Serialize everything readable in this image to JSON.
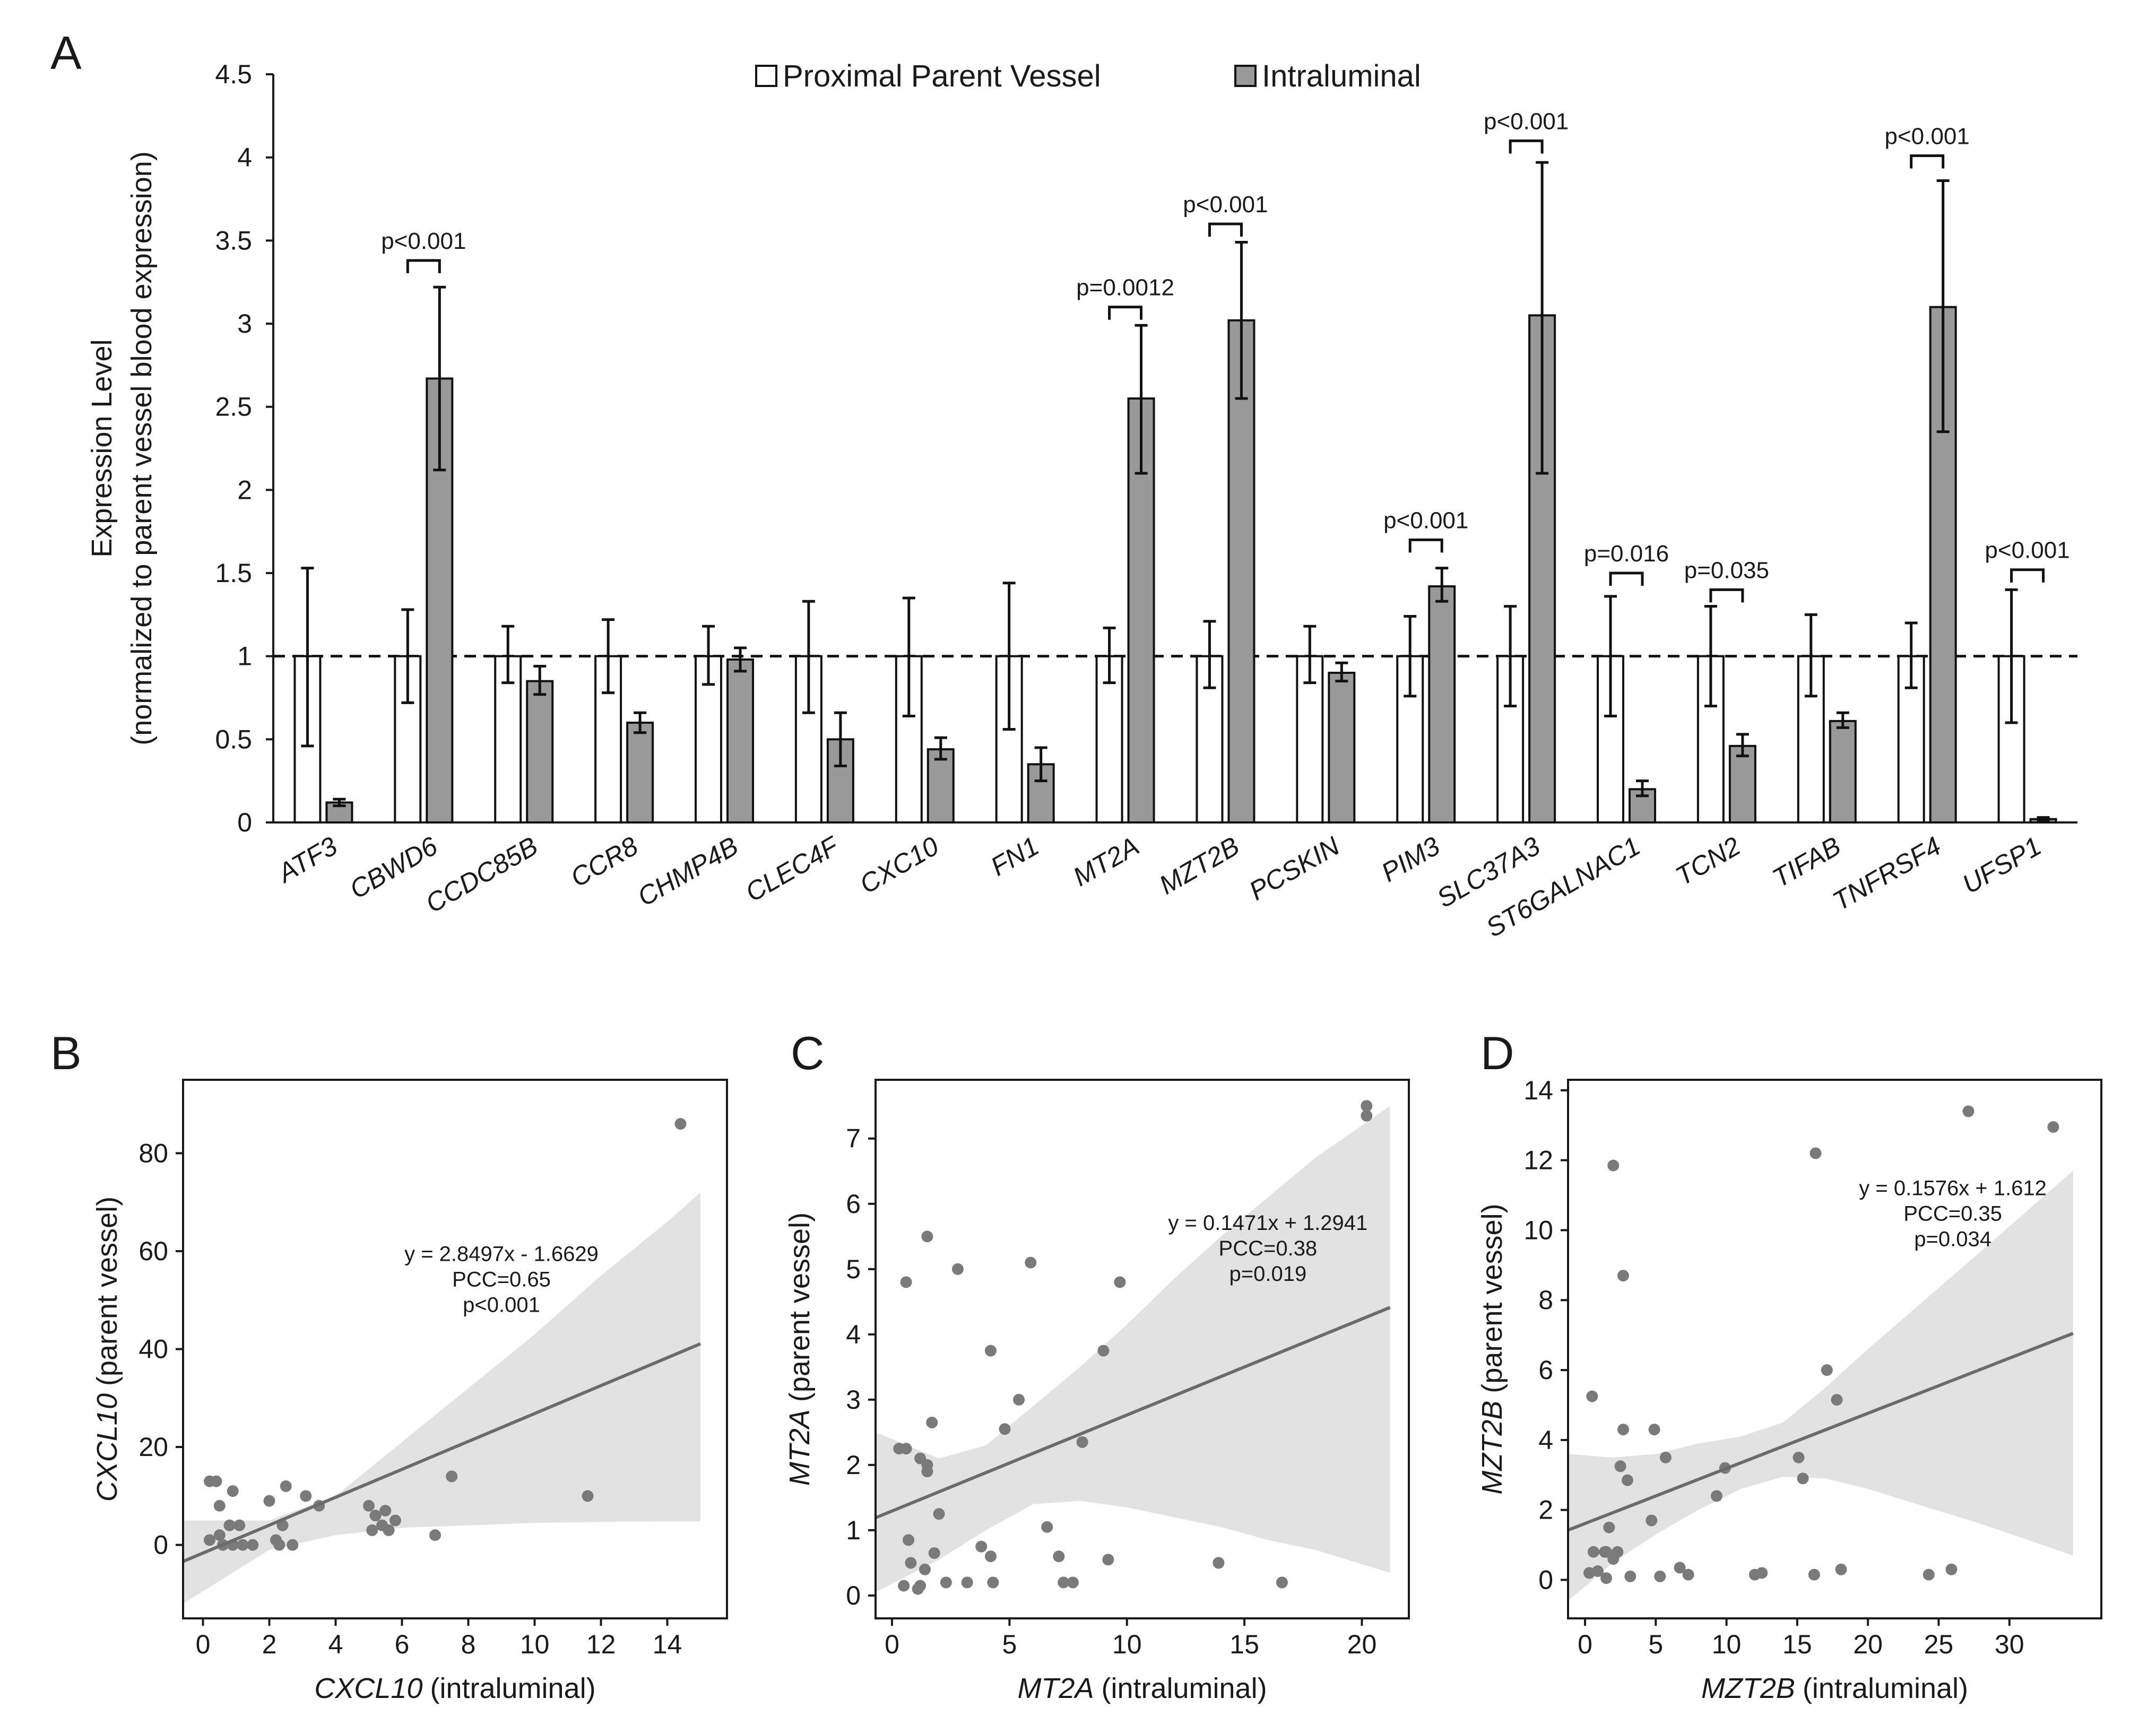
{
  "chart_data": [
    {
      "panel": "A",
      "type": "bar",
      "ylabel": "Expression Level",
      "ylabel2": "(normalized to parent vessel blood expression)",
      "ylim": [
        0,
        4.5
      ],
      "yticks": [
        "0",
        "0.5",
        "1",
        "1.5",
        "2",
        "2.5",
        "3",
        "3.5",
        "4",
        "4.5"
      ],
      "reference_line": 1,
      "legend": [
        "Proximal Parent Vessel",
        "Intraluminal"
      ],
      "colors": {
        "parent": "#ffffff",
        "intraluminal": "#999999",
        "edge": "#111111",
        "grid": "#cccccc"
      },
      "categories": [
        "ATF3",
        "CBWD6",
        "CCDC85B",
        "CCR8",
        "CHMP4B",
        "CLEC4F",
        "CXC10",
        "FN1",
        "MT2A",
        "MZT2B",
        "PCSKIN",
        "PIM3",
        "SLC37A3",
        "ST6GALNAC1",
        "TCN2",
        "TIFAB",
        "TNFRSF4",
        "UFSP1"
      ],
      "series": [
        {
          "name": "Proximal Parent Vessel",
          "values": [
            1,
            1,
            1,
            1,
            1,
            1,
            1,
            1,
            1,
            1,
            1,
            1,
            1,
            1,
            1,
            1,
            1,
            1
          ],
          "err_low": [
            0.46,
            0.72,
            0.84,
            0.78,
            0.83,
            0.66,
            0.64,
            0.56,
            0.84,
            0.81,
            0.84,
            0.76,
            0.7,
            0.64,
            0.7,
            0.76,
            0.81,
            0.6
          ],
          "err_high": [
            1.53,
            1.28,
            1.18,
            1.22,
            1.18,
            1.33,
            1.35,
            1.44,
            1.17,
            1.21,
            1.18,
            1.24,
            1.3,
            1.36,
            1.3,
            1.25,
            1.2,
            1.4
          ]
        },
        {
          "name": "Intraluminal",
          "values": [
            0.12,
            2.67,
            0.85,
            0.6,
            0.98,
            0.5,
            0.44,
            0.35,
            2.55,
            3.02,
            0.9,
            1.42,
            3.05,
            0.2,
            0.46,
            0.61,
            3.1,
            0.02
          ],
          "err_low": [
            0.1,
            2.12,
            0.77,
            0.54,
            0.91,
            0.34,
            0.38,
            0.25,
            2.1,
            2.55,
            0.85,
            1.33,
            2.1,
            0.16,
            0.4,
            0.57,
            2.35,
            0.01
          ],
          "err_high": [
            0.14,
            3.22,
            0.94,
            0.66,
            1.05,
            0.66,
            0.51,
            0.45,
            2.99,
            3.49,
            0.96,
            1.53,
            3.97,
            0.25,
            0.53,
            0.66,
            3.86,
            0.03
          ]
        }
      ],
      "annotations": [
        {
          "category": "CBWD6",
          "text": "p<0.001",
          "y": 3.38
        },
        {
          "category": "MT2A",
          "text": "p=0.0012",
          "y": 3.1
        },
        {
          "category": "MZT2B",
          "text": "p<0.001",
          "y": 3.6
        },
        {
          "category": "PIM3",
          "text": "p<0.001",
          "y": 1.7
        },
        {
          "category": "SLC37A3",
          "text": "p<0.001",
          "y": 4.1
        },
        {
          "category": "ST6GALNAC1",
          "text": "p=0.016",
          "y": 1.5
        },
        {
          "category": "TCN2",
          "text": "p=0.035",
          "y": 1.4
        },
        {
          "category": "TNFRSF4",
          "text": "p<0.001",
          "y": 4.01
        },
        {
          "category": "UFSP1",
          "text": "p<0.001",
          "y": 1.52
        }
      ]
    },
    {
      "panel": "B",
      "type": "scatter",
      "xlabel_gene": "CXCL10",
      "xlabel_rest": "(intraluminal)",
      "ylabel_gene": "CXCL10",
      "ylabel_rest": "(parent vessel)",
      "xlim": [
        -0.6,
        15.8
      ],
      "ylim": [
        -15,
        95
      ],
      "xticks": [
        0,
        2,
        4,
        6,
        8,
        10,
        12,
        14
      ],
      "yticks": [
        0,
        20,
        40,
        60,
        80
      ],
      "fit": {
        "slope": 2.8497,
        "intercept": -1.6629,
        "x_range": [
          -0.6,
          15
        ]
      },
      "band": {
        "x": [
          -0.6,
          2,
          4,
          6,
          8,
          10,
          12,
          14,
          15
        ],
        "lower": [
          -12,
          -1,
          2,
          3.5,
          4,
          4.5,
          4.7,
          4.8,
          4.8
        ],
        "upper": [
          5,
          5,
          10,
          21,
          32,
          43,
          55,
          66,
          72
        ]
      },
      "equation": "y = 2.8497x - 1.6629",
      "pcc": "PCC=0.65",
      "pvalue": "p<0.001",
      "points": [
        [
          0.2,
          13
        ],
        [
          0.4,
          13
        ],
        [
          0.9,
          11
        ],
        [
          0.5,
          8
        ],
        [
          0.8,
          4
        ],
        [
          1.1,
          4
        ],
        [
          0.2,
          1
        ],
        [
          0.5,
          2
        ],
        [
          0.6,
          0
        ],
        [
          0.9,
          0
        ],
        [
          1.2,
          0
        ],
        [
          1.5,
          0
        ],
        [
          2,
          9
        ],
        [
          2.2,
          1
        ],
        [
          2.3,
          0
        ],
        [
          2.4,
          4
        ],
        [
          2.5,
          12
        ],
        [
          2.7,
          0
        ],
        [
          3.1,
          10
        ],
        [
          3.5,
          8
        ],
        [
          5,
          8
        ],
        [
          5.1,
          3
        ],
        [
          5.2,
          6
        ],
        [
          5.4,
          4
        ],
        [
          5.5,
          7
        ],
        [
          5.8,
          5
        ],
        [
          5.6,
          3
        ],
        [
          7,
          2
        ],
        [
          7.5,
          14
        ],
        [
          11.6,
          10
        ],
        [
          14.4,
          86
        ]
      ]
    },
    {
      "panel": "C",
      "type": "scatter",
      "xlabel_gene": "MT2A",
      "xlabel_rest": "(intraluminal)",
      "ylabel_gene": "MT2A",
      "ylabel_rest": "(parent vessel)",
      "xlim": [
        -0.7,
        22
      ],
      "ylim": [
        -0.35,
        7.9
      ],
      "xticks": [
        0,
        5,
        10,
        15,
        20
      ],
      "yticks": [
        0,
        1,
        2,
        3,
        4,
        5,
        6,
        7
      ],
      "fit": {
        "slope": 0.1471,
        "intercept": 1.2941,
        "x_range": [
          -0.7,
          21.2
        ]
      },
      "band": {
        "x": [
          -0.7,
          2,
          4,
          6,
          8,
          10,
          12,
          14,
          16,
          18,
          21.2
        ],
        "lower": [
          0.05,
          0.55,
          1.0,
          1.4,
          1.45,
          1.35,
          1.2,
          1.05,
          0.85,
          0.7,
          0.35
        ],
        "upper": [
          2.5,
          2.1,
          2.3,
          2.9,
          3.5,
          4.15,
          4.85,
          5.5,
          6.1,
          6.7,
          7.5
        ]
      },
      "equation": "y = 0.1471x + 1.2941",
      "pcc": "PCC=0.38",
      "pvalue": "p=0.019",
      "points": [
        [
          0.3,
          2.25
        ],
        [
          0.6,
          2.25
        ],
        [
          0.6,
          4.8
        ],
        [
          0.5,
          0.15
        ],
        [
          0.7,
          0.85
        ],
        [
          0.8,
          0.5
        ],
        [
          1.1,
          0.1
        ],
        [
          1.2,
          0.15
        ],
        [
          1.2,
          2.1
        ],
        [
          1.4,
          0.4
        ],
        [
          1.5,
          1.9
        ],
        [
          1.5,
          2.0
        ],
        [
          1.5,
          5.5
        ],
        [
          1.7,
          2.65
        ],
        [
          1.8,
          0.65
        ],
        [
          2.0,
          1.25
        ],
        [
          2.3,
          0.2
        ],
        [
          2.8,
          5.0
        ],
        [
          3.2,
          0.2
        ],
        [
          3.8,
          0.75
        ],
        [
          4.2,
          3.75
        ],
        [
          4.3,
          0.2
        ],
        [
          4.2,
          0.6
        ],
        [
          4.8,
          2.55
        ],
        [
          5.4,
          3.0
        ],
        [
          5.9,
          5.1
        ],
        [
          6.6,
          1.05
        ],
        [
          7.1,
          0.6
        ],
        [
          7.3,
          0.2
        ],
        [
          7.7,
          0.2
        ],
        [
          8.1,
          2.35
        ],
        [
          9.0,
          3.75
        ],
        [
          9.2,
          0.55
        ],
        [
          9.7,
          4.8
        ],
        [
          13.9,
          0.5
        ],
        [
          16.6,
          0.2
        ],
        [
          20.2,
          7.35
        ],
        [
          20.2,
          7.5
        ]
      ]
    },
    {
      "panel": "D",
      "type": "scatter",
      "xlabel_gene": "MZT2B",
      "xlabel_rest": "(intraluminal)",
      "ylabel_gene": "MZT2B",
      "ylabel_rest": "(parent vessel)",
      "xlim": [
        -1.2,
        36.5
      ],
      "ylim": [
        -1.1,
        14.3
      ],
      "xticks": [
        0,
        5,
        10,
        15,
        20,
        25,
        30
      ],
      "yticks": [
        0,
        2,
        4,
        6,
        8,
        10,
        12,
        14
      ],
      "fit": {
        "slope": 0.1576,
        "intercept": 1.612,
        "x_range": [
          -1.2,
          34.5
        ]
      },
      "band": {
        "x": [
          -1.2,
          2,
          5,
          8,
          11,
          14,
          17,
          20,
          24,
          28,
          34.5
        ],
        "lower": [
          -0.6,
          0.5,
          1.3,
          2.0,
          2.6,
          2.95,
          2.9,
          2.6,
          2.1,
          1.6,
          0.7
        ],
        "upper": [
          3.6,
          3.5,
          3.6,
          3.9,
          4.1,
          4.5,
          5.5,
          6.6,
          8.0,
          9.4,
          11.7
        ]
      },
      "equation": "y = 0.1576x + 1.612",
      "pcc": "PCC=0.35",
      "pvalue": "p=0.034",
      "points": [
        [
          0.3,
          0.2
        ],
        [
          0.5,
          5.25
        ],
        [
          0.6,
          0.8
        ],
        [
          0.9,
          0.25
        ],
        [
          1.4,
          0.8
        ],
        [
          1.5,
          0.05
        ],
        [
          1.5,
          0.8
        ],
        [
          1.7,
          1.5
        ],
        [
          2.0,
          0.6
        ],
        [
          2.0,
          11.85
        ],
        [
          2.3,
          0.8
        ],
        [
          2.5,
          3.25
        ],
        [
          2.7,
          8.7
        ],
        [
          2.7,
          4.3
        ],
        [
          3.0,
          2.85
        ],
        [
          3.2,
          0.1
        ],
        [
          4.7,
          1.7
        ],
        [
          4.9,
          4.3
        ],
        [
          5.3,
          0.1
        ],
        [
          5.7,
          3.5
        ],
        [
          6.7,
          0.35
        ],
        [
          7.3,
          0.15
        ],
        [
          9.3,
          2.4
        ],
        [
          9.9,
          3.2
        ],
        [
          12.0,
          0.15
        ],
        [
          12.5,
          0.2
        ],
        [
          15.1,
          3.5
        ],
        [
          15.4,
          2.9
        ],
        [
          16.2,
          0.15
        ],
        [
          16.3,
          12.2
        ],
        [
          17.1,
          6.0
        ],
        [
          17.8,
          5.15
        ],
        [
          18.1,
          0.3
        ],
        [
          24.3,
          0.15
        ],
        [
          25.9,
          0.3
        ],
        [
          27.1,
          13.4
        ],
        [
          33.1,
          12.95
        ]
      ]
    }
  ]
}
